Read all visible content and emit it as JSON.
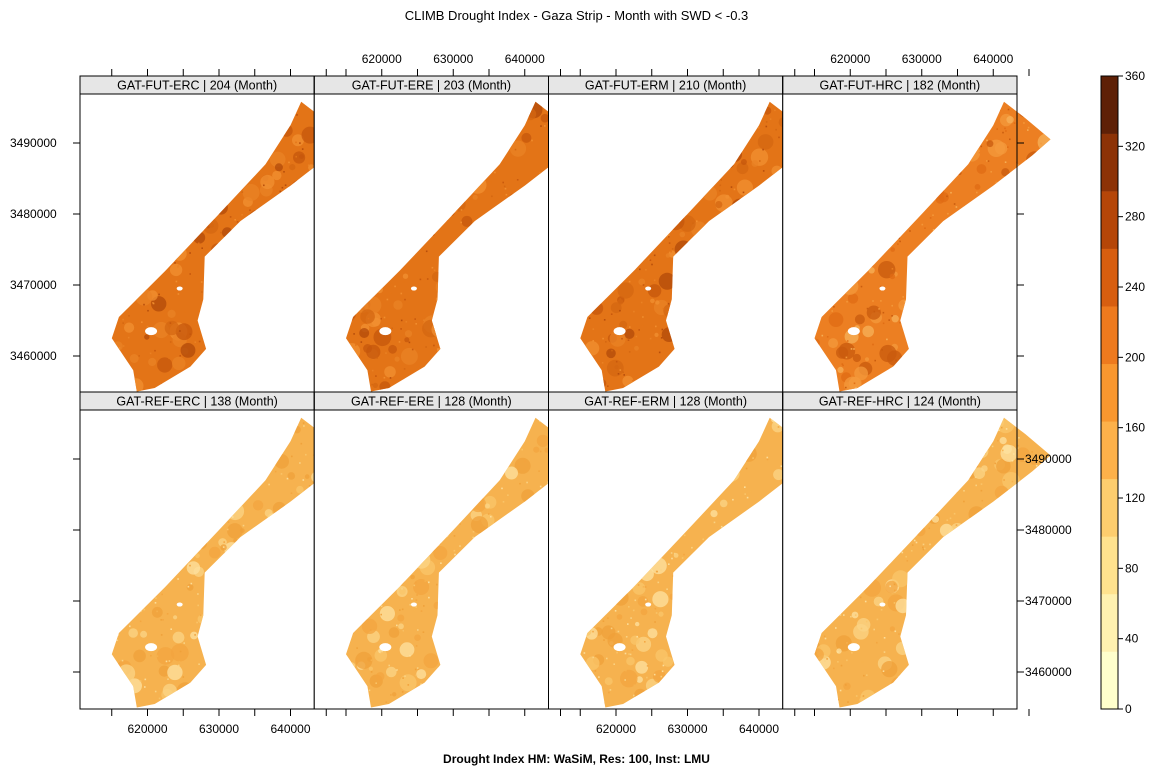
{
  "title": "CLIMB Drought Index - Gaza Strip  - Month with SWD < -0.3",
  "footer": "Drought Index HM: WaSiM, Res: 100, Inst: LMU",
  "axes": {
    "x_ticks": [
      "620000",
      "630000",
      "640000"
    ],
    "y_ticks": [
      "3460000",
      "3470000",
      "3480000",
      "3490000"
    ]
  },
  "colorbar": {
    "ticks": [
      "0",
      "40",
      "80",
      "120",
      "160",
      "200",
      "240",
      "280",
      "320",
      "360"
    ],
    "colors": [
      "#FFFFCC",
      "#FFF1B0",
      "#FFE28E",
      "#FDCD6E",
      "#FDB14A",
      "#F9972F",
      "#EE7A1E",
      "#D75E10",
      "#B54608",
      "#8C3206",
      "#5E2006"
    ]
  },
  "panel_colors": {
    "high": [
      "#E37417",
      "#D46711",
      "#C5570C",
      "#F29031",
      "#B24A0A",
      "#EA8325"
    ],
    "mid": [
      "#EC7F22",
      "#F49A3C",
      "#C85A0D",
      "#F7B25A",
      "#E06B14"
    ],
    "low": [
      "#F6B24F",
      "#F9C56A",
      "#F3A43F",
      "#FBD486",
      "#EFA039",
      "#FDE1A0"
    ]
  },
  "panels": [
    {
      "label": "GAT-FUT-ERC | 204 (Month)",
      "value": 204,
      "tone": "high"
    },
    {
      "label": "GAT-FUT-ERE | 203 (Month)",
      "value": 203,
      "tone": "high"
    },
    {
      "label": "GAT-FUT-ERM | 210 (Month)",
      "value": 210,
      "tone": "high"
    },
    {
      "label": "GAT-FUT-HRC | 182 (Month)",
      "value": 182,
      "tone": "mid"
    },
    {
      "label": "GAT-REF-ERC | 138 (Month)",
      "value": 138,
      "tone": "low"
    },
    {
      "label": "GAT-REF-ERE | 128 (Month)",
      "value": 128,
      "tone": "low"
    },
    {
      "label": "GAT-REF-ERM | 128 (Month)",
      "value": 128,
      "tone": "low"
    },
    {
      "label": "GAT-REF-HRC | 124 (Month)",
      "value": 124,
      "tone": "low"
    }
  ]
}
